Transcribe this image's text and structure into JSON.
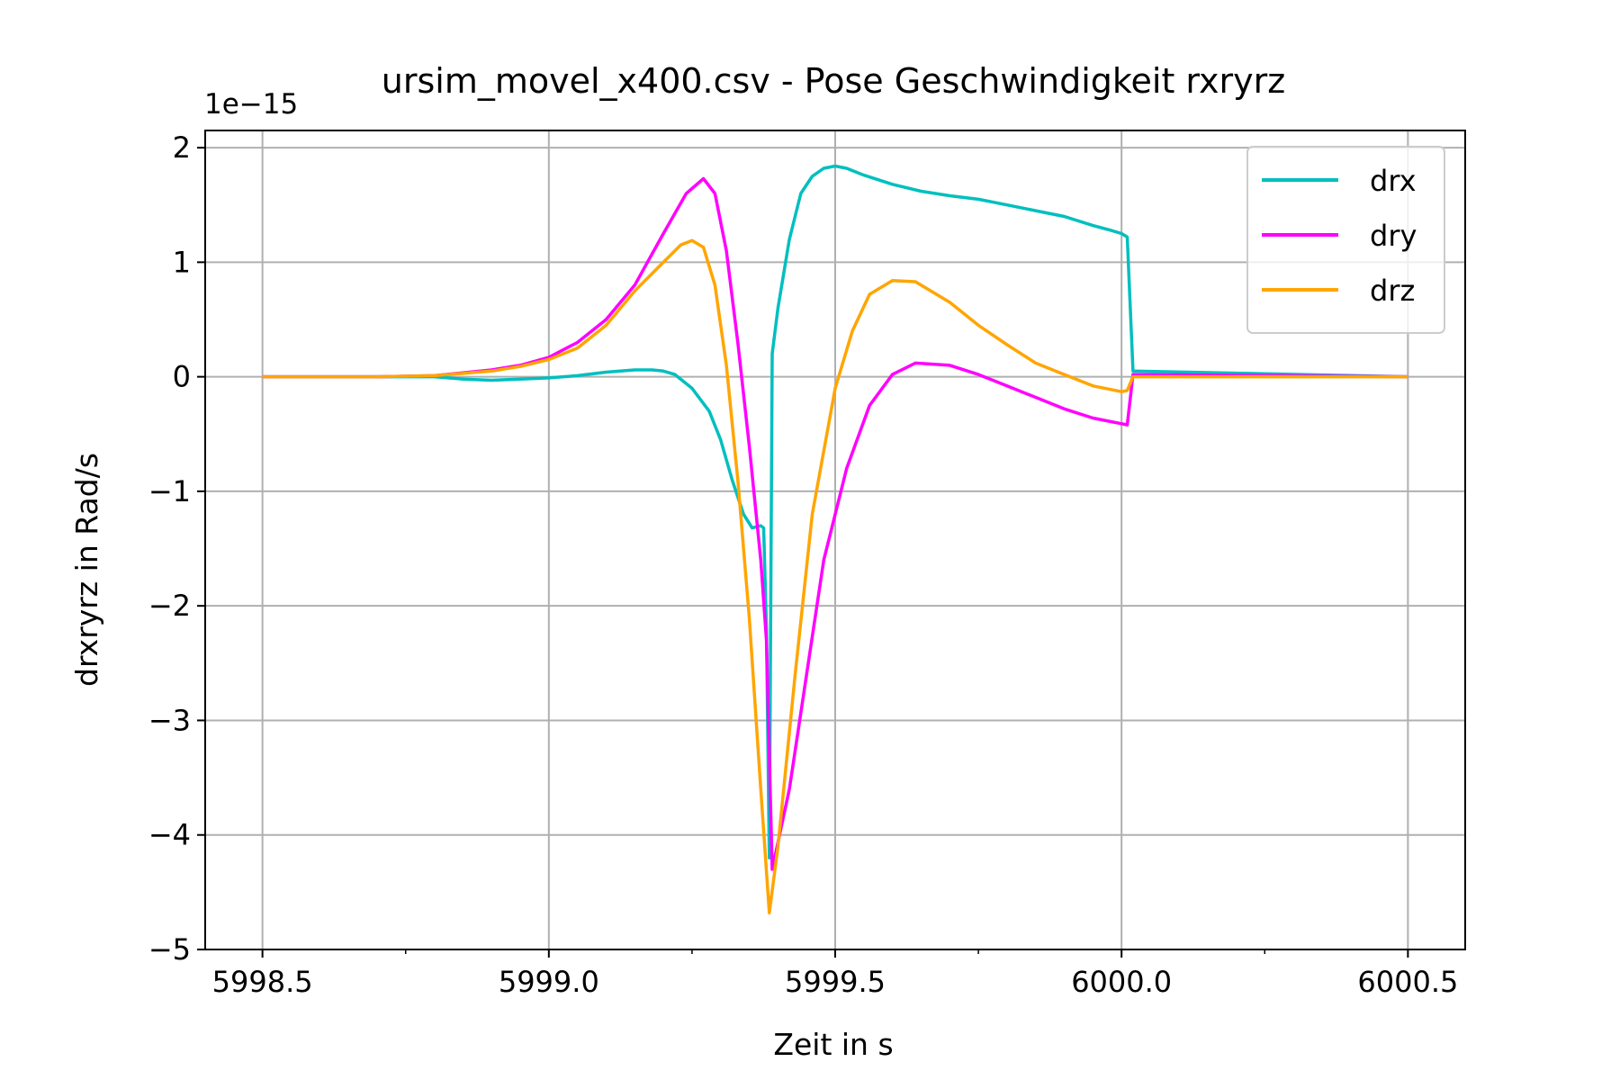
{
  "chart_data": {
    "type": "line",
    "title": "ursim_movel_x400.csv - Pose Geschwindigkeit rxryrz",
    "xlabel": "Zeit in s",
    "ylabel": "drxryrz in Rad/s",
    "offset_text": "1e−15",
    "scale_factor": 1e-15,
    "xlim": [
      5998.4,
      6000.6
    ],
    "ylim": [
      -5,
      2.15
    ],
    "xticks": [
      5998.5,
      5999.0,
      5999.5,
      6000.0,
      6000.5
    ],
    "xtick_labels": [
      "5998.5",
      "5999.0",
      "5999.5",
      "6000.0",
      "6000.5"
    ],
    "xminor_ticks": [
      5998.75,
      5999.25,
      5999.75,
      6000.25
    ],
    "yticks": [
      -5,
      -4,
      -3,
      -2,
      -1,
      0,
      1,
      2
    ],
    "ytick_labels": [
      "−5",
      "−4",
      "−3",
      "−2",
      "−1",
      "0",
      "1",
      "2"
    ],
    "grid": true,
    "legend_position": "top-right",
    "series": [
      {
        "name": "drx",
        "color": "#00bfbf",
        "points": [
          [
            5998.5,
            0
          ],
          [
            5998.7,
            0
          ],
          [
            5998.8,
            0
          ],
          [
            5998.85,
            -0.02
          ],
          [
            5998.9,
            -0.03
          ],
          [
            5998.95,
            -0.02
          ],
          [
            5999.0,
            -0.01
          ],
          [
            5999.05,
            0.01
          ],
          [
            5999.1,
            0.04
          ],
          [
            5999.15,
            0.06
          ],
          [
            5999.18,
            0.06
          ],
          [
            5999.2,
            0.05
          ],
          [
            5999.22,
            0.02
          ],
          [
            5999.25,
            -0.1
          ],
          [
            5999.28,
            -0.3
          ],
          [
            5999.3,
            -0.55
          ],
          [
            5999.32,
            -0.9
          ],
          [
            5999.34,
            -1.2
          ],
          [
            5999.355,
            -1.32
          ],
          [
            5999.37,
            -1.3
          ],
          [
            5999.375,
            -1.32
          ],
          [
            5999.38,
            -2.2
          ],
          [
            5999.385,
            -4.2
          ],
          [
            5999.39,
            0.2
          ],
          [
            5999.4,
            0.6
          ],
          [
            5999.42,
            1.2
          ],
          [
            5999.44,
            1.6
          ],
          [
            5999.46,
            1.75
          ],
          [
            5999.48,
            1.82
          ],
          [
            5999.5,
            1.84
          ],
          [
            5999.52,
            1.82
          ],
          [
            5999.55,
            1.76
          ],
          [
            5999.6,
            1.68
          ],
          [
            5999.65,
            1.62
          ],
          [
            5999.7,
            1.58
          ],
          [
            5999.75,
            1.55
          ],
          [
            5999.8,
            1.5
          ],
          [
            5999.85,
            1.45
          ],
          [
            5999.9,
            1.4
          ],
          [
            5999.95,
            1.32
          ],
          [
            5999.98,
            1.28
          ],
          [
            6000.0,
            1.25
          ],
          [
            6000.01,
            1.22
          ],
          [
            6000.02,
            0.05
          ],
          [
            6000.5,
            0
          ]
        ]
      },
      {
        "name": "dry",
        "color": "#ff00ff",
        "points": [
          [
            5998.5,
            0
          ],
          [
            5998.7,
            0
          ],
          [
            5998.8,
            0.01
          ],
          [
            5998.9,
            0.06
          ],
          [
            5998.95,
            0.1
          ],
          [
            5999.0,
            0.17
          ],
          [
            5999.05,
            0.3
          ],
          [
            5999.1,
            0.5
          ],
          [
            5999.15,
            0.8
          ],
          [
            5999.2,
            1.25
          ],
          [
            5999.24,
            1.6
          ],
          [
            5999.27,
            1.73
          ],
          [
            5999.29,
            1.6
          ],
          [
            5999.31,
            1.1
          ],
          [
            5999.33,
            0.3
          ],
          [
            5999.35,
            -0.6
          ],
          [
            5999.37,
            -1.6
          ],
          [
            5999.38,
            -2.3
          ],
          [
            5999.39,
            -4.3
          ],
          [
            5999.42,
            -3.6
          ],
          [
            5999.45,
            -2.6
          ],
          [
            5999.48,
            -1.6
          ],
          [
            5999.52,
            -0.8
          ],
          [
            5999.56,
            -0.25
          ],
          [
            5999.6,
            0.02
          ],
          [
            5999.64,
            0.12
          ],
          [
            5999.7,
            0.1
          ],
          [
            5999.75,
            0.02
          ],
          [
            5999.8,
            -0.08
          ],
          [
            5999.85,
            -0.18
          ],
          [
            5999.9,
            -0.28
          ],
          [
            5999.95,
            -0.36
          ],
          [
            6000.0,
            -0.41
          ],
          [
            6000.01,
            -0.42
          ],
          [
            6000.02,
            0.02
          ],
          [
            6000.5,
            0
          ]
        ]
      },
      {
        "name": "drz",
        "color": "#ffa500",
        "points": [
          [
            5998.5,
            0
          ],
          [
            5998.7,
            0
          ],
          [
            5998.8,
            0.01
          ],
          [
            5998.9,
            0.05
          ],
          [
            5998.95,
            0.09
          ],
          [
            5999.0,
            0.15
          ],
          [
            5999.05,
            0.25
          ],
          [
            5999.1,
            0.45
          ],
          [
            5999.15,
            0.75
          ],
          [
            5999.2,
            1.0
          ],
          [
            5999.23,
            1.15
          ],
          [
            5999.25,
            1.19
          ],
          [
            5999.27,
            1.13
          ],
          [
            5999.29,
            0.8
          ],
          [
            5999.31,
            0.1
          ],
          [
            5999.33,
            -0.9
          ],
          [
            5999.35,
            -2.1
          ],
          [
            5999.37,
            -3.6
          ],
          [
            5999.385,
            -4.68
          ],
          [
            5999.4,
            -4.1
          ],
          [
            5999.43,
            -2.6
          ],
          [
            5999.46,
            -1.2
          ],
          [
            5999.5,
            -0.1
          ],
          [
            5999.53,
            0.4
          ],
          [
            5999.56,
            0.72
          ],
          [
            5999.6,
            0.84
          ],
          [
            5999.64,
            0.83
          ],
          [
            5999.7,
            0.65
          ],
          [
            5999.75,
            0.45
          ],
          [
            5999.8,
            0.28
          ],
          [
            5999.85,
            0.12
          ],
          [
            5999.9,
            0.02
          ],
          [
            5999.95,
            -0.08
          ],
          [
            6000.0,
            -0.13
          ],
          [
            6000.01,
            -0.12
          ],
          [
            6000.02,
            0
          ],
          [
            6000.5,
            0
          ]
        ]
      }
    ]
  }
}
